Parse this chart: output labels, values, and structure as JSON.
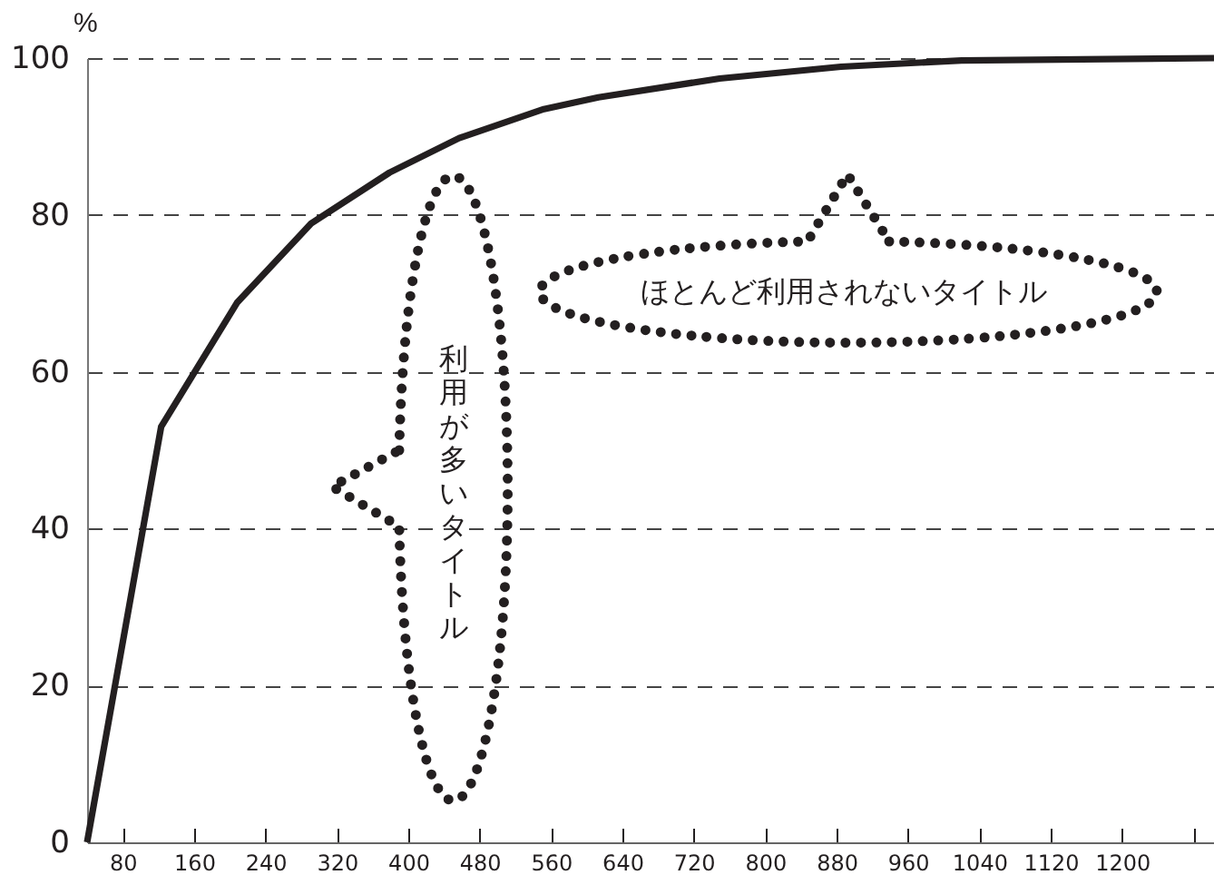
{
  "chart_data": {
    "type": "line",
    "ylabel": "%",
    "x": [
      40,
      123,
      208,
      291,
      379,
      457,
      552,
      613,
      749,
      885,
      1020,
      1303
    ],
    "series": [
      {
        "color": "#231f20",
        "values": [
          0,
          53,
          68.8,
          78.9,
          85.4,
          89.8,
          93.5,
          95,
          97.4,
          98.9,
          99.7,
          100
        ]
      }
    ],
    "xlim": [
      40,
      1303
    ],
    "xticks": [
      80,
      160,
      240,
      320,
      400,
      480,
      560,
      640,
      720,
      800,
      880,
      960,
      1040,
      1120,
      1200,
      {
        "value": 1280,
        "label": null
      }
    ],
    "ylim": [
      0,
      100
    ],
    "yticks": [
      0,
      20,
      40,
      60,
      80,
      100
    ],
    "grid": "y",
    "legend": false,
    "marker": "none",
    "line_style": "solid",
    "annotations": [
      "利用が多いタイトル",
      "ほとんど利用されないタイトル"
    ]
  }
}
